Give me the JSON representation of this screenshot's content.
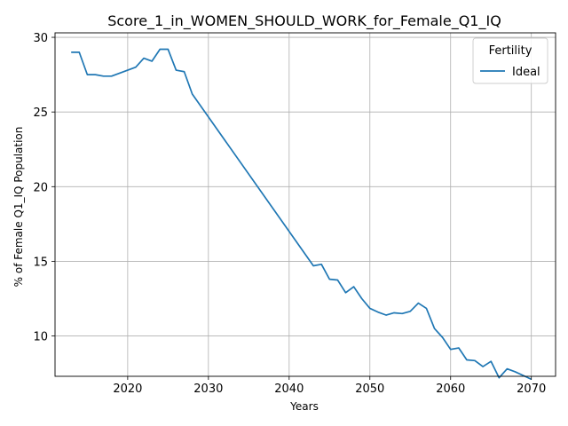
{
  "chart_data": {
    "type": "line",
    "title": "Score_1_in_WOMEN_SHOULD_WORK_for_Female_Q1_IQ",
    "xlabel": "Years",
    "ylabel": "% of Female Q1_IQ Population",
    "xlim": [
      2011,
      2073
    ],
    "ylim": [
      7.3,
      30.3
    ],
    "xticks": [
      2020,
      2030,
      2040,
      2050,
      2060,
      2070
    ],
    "yticks": [
      10,
      15,
      20,
      25,
      30
    ],
    "grid": true,
    "legend": {
      "title": "Fertility",
      "placement": "top-right"
    },
    "series": [
      {
        "name": "Ideal",
        "color": "#1f77b4",
        "x": [
          2013,
          2014,
          2015,
          2016,
          2017,
          2018,
          2019,
          2020,
          2021,
          2022,
          2023,
          2024,
          2025,
          2026,
          2027,
          2028,
          2043,
          2044,
          2045,
          2046,
          2047,
          2048,
          2049,
          2050,
          2051,
          2052,
          2053,
          2054,
          2055,
          2056,
          2057,
          2058,
          2059,
          2060,
          2061,
          2062,
          2063,
          2064,
          2065,
          2066,
          2067,
          2068,
          2069,
          2070
        ],
        "y": [
          29.0,
          29.0,
          27.5,
          27.5,
          27.4,
          27.4,
          27.6,
          27.8,
          28.0,
          28.6,
          28.4,
          29.2,
          29.2,
          27.8,
          27.7,
          26.2,
          14.7,
          14.8,
          13.8,
          13.75,
          12.9,
          13.3,
          12.5,
          11.85,
          11.6,
          11.4,
          11.55,
          11.5,
          11.65,
          12.2,
          11.85,
          10.5,
          9.9,
          9.1,
          9.2,
          8.4,
          8.35,
          7.95,
          8.3,
          7.2,
          7.8,
          7.6,
          7.35,
          7.1
        ]
      }
    ]
  }
}
